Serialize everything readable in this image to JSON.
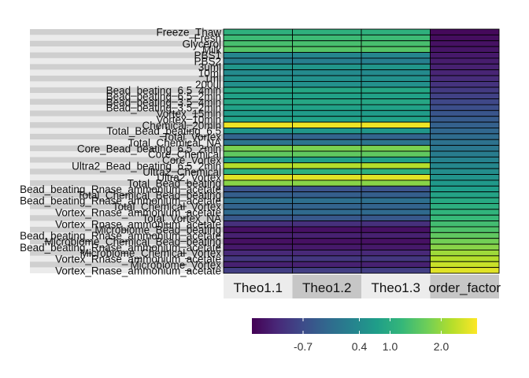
{
  "chart_data": {
    "type": "heatmap",
    "rows": [
      "Freeze_Thaw",
      "Fresh",
      "Glycerol",
      "Milk",
      "PBS1",
      "PBS2",
      "3uml",
      "10ml",
      "1ml",
      "200ul",
      "Bead_beating_6.5_4min",
      "Bead_beating_6.5_2min",
      "Bead_beating_3.5_4min",
      "Bead_beating_3.5_2min",
      "Vortex_15min",
      "Vortex_10min",
      "Chemical_20min",
      "Total_Bead_beating_6.5",
      "Total_Vortex",
      "Total_Chemical_NA",
      "Core_Bead_beating_6.5_2min",
      "Core_Chemical",
      "Core_Vortex",
      "Ultra2_Bead_beating_6.5_2min",
      "Ultra2_Chemical",
      "Ultra2_Vortex",
      "Total_Bead_beating",
      "Bead_beating_Rnase_ammonium_acetate",
      "Total_Chemical_Bead_beating",
      "Bead_beating_Rnase_ammonium_acetate",
      "Total_Chemical_Vortex",
      "Vortex_Rnase_ammonium_acetate",
      "Total_Vortex_NA",
      "Vortex_Rnase_ammonium_acetate",
      "Microbiome_Bead_beating",
      "Bead_beating_Rnase_ammonium_acetate",
      "Microbiome_Chemical_Bead_beating",
      "Bead_beating_Rnase_ammonium_acetate",
      "Microbiome_Chemical_Vortex",
      "Vortex_Rnase_ammonium_acetate",
      "Microbiome_Vortex",
      "Vortex_Rnase_ammonium_acetate"
    ],
    "columns": [
      "Theo1.1",
      "Theo1.2",
      "Theo1.3",
      "order_factor"
    ],
    "values": [
      [
        1.1,
        1.1,
        1.1,
        -1.6
      ],
      [
        1.3,
        1.3,
        1.3,
        -1.55
      ],
      [
        1.4,
        1.4,
        1.4,
        -1.5
      ],
      [
        1.5,
        1.5,
        1.5,
        -1.45
      ],
      [
        0.3,
        0.3,
        0.3,
        -1.4
      ],
      [
        0.2,
        0.2,
        0.2,
        -1.35
      ],
      [
        0.6,
        0.6,
        0.6,
        -1.3
      ],
      [
        0.4,
        0.4,
        0.4,
        -1.25
      ],
      [
        0.5,
        0.5,
        0.5,
        -1.15
      ],
      [
        0.5,
        0.5,
        0.5,
        -1.05
      ],
      [
        0.9,
        0.9,
        0.9,
        -0.95
      ],
      [
        0.8,
        0.8,
        0.8,
        -0.85
      ],
      [
        0.9,
        0.9,
        0.9,
        -0.75
      ],
      [
        0.8,
        0.8,
        0.8,
        -0.65
      ],
      [
        0.7,
        0.7,
        0.7,
        -0.55
      ],
      [
        0.8,
        0.8,
        0.8,
        -0.45
      ],
      [
        2.6,
        2.6,
        2.6,
        -0.35
      ],
      [
        0.6,
        0.6,
        0.6,
        -0.25
      ],
      [
        -0.3,
        -0.3,
        -0.3,
        -0.15
      ],
      [
        0.0,
        0.0,
        0.0,
        -0.05
      ],
      [
        1.8,
        1.8,
        1.8,
        0.05
      ],
      [
        1.6,
        1.6,
        1.6,
        0.15
      ],
      [
        0.8,
        0.8,
        0.8,
        0.25
      ],
      [
        2.2,
        2.2,
        2.2,
        0.35
      ],
      [
        1.1,
        1.1,
        1.1,
        0.45
      ],
      [
        2.5,
        2.5,
        2.5,
        0.55
      ],
      [
        1.9,
        1.9,
        1.9,
        0.65
      ],
      [
        -0.6,
        -0.6,
        -0.6,
        0.75
      ],
      [
        -0.4,
        -0.4,
        -0.4,
        0.85
      ],
      [
        -0.1,
        -0.1,
        -0.1,
        0.95
      ],
      [
        -0.3,
        -0.3,
        -0.3,
        1.05
      ],
      [
        -0.2,
        -0.2,
        -0.2,
        1.15
      ],
      [
        -0.5,
        -0.5,
        -0.5,
        1.25
      ],
      [
        -1.1,
        -1.1,
        -1.1,
        1.35
      ],
      [
        -1.5,
        -1.5,
        -1.5,
        1.45
      ],
      [
        -1.3,
        -1.3,
        -1.3,
        1.6
      ],
      [
        -1.5,
        -1.5,
        -1.5,
        1.75
      ],
      [
        -1.4,
        -1.4,
        -1.4,
        1.9
      ],
      [
        -1.2,
        -1.2,
        -1.2,
        2.05
      ],
      [
        -1.0,
        -1.0,
        -1.0,
        2.2
      ],
      [
        -1.3,
        -1.3,
        -1.3,
        2.35
      ],
      [
        -0.9,
        -0.9,
        -0.9,
        2.5
      ]
    ],
    "color_scale": "viridis",
    "colorbar_range": [
      -1.7,
      2.7
    ],
    "colorbar_ticks": [
      {
        "value": -0.7,
        "label": "-0.7"
      },
      {
        "value": 0.4,
        "label": "0.4"
      },
      {
        "value": 1.0,
        "label": "1.0"
      },
      {
        "value": 2.0,
        "label": "2.0"
      }
    ],
    "title": "",
    "xlabel": "",
    "ylabel": "",
    "legend_position": "bottom",
    "grid": false
  }
}
